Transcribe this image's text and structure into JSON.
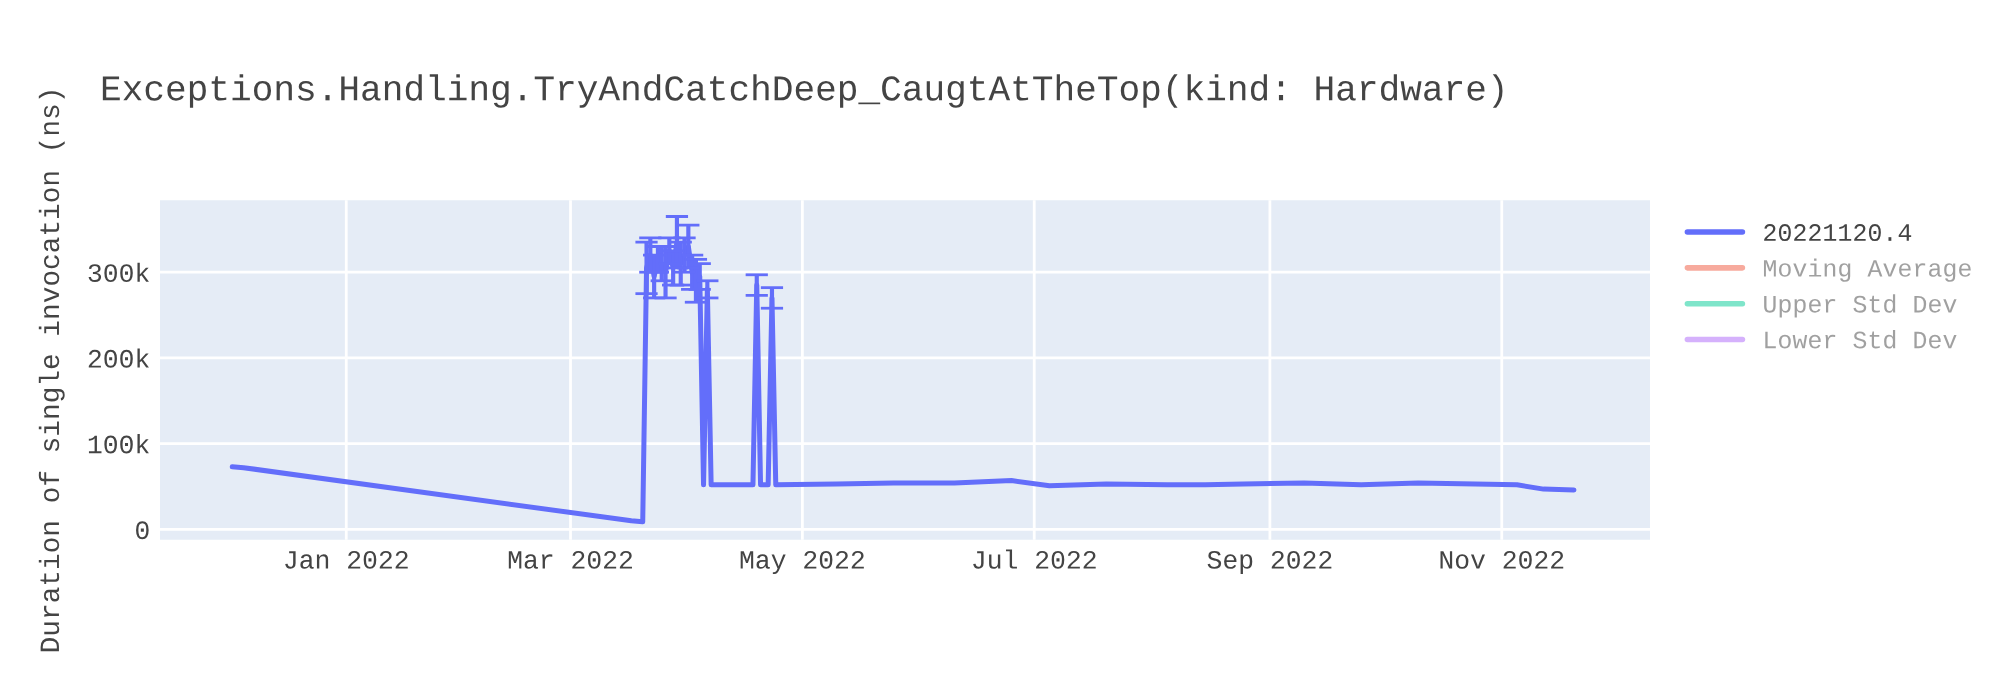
{
  "chart_data": {
    "type": "line",
    "title": "Exceptions.Handling.TryAndCatchDeep_CaugtAtTheTop(kind: Hardware)",
    "ylabel": "Duration of single invocation (ns)",
    "xlim": [
      "2021-11-13",
      "2022-12-10"
    ],
    "xticks": [
      {
        "value": "2022-01-01",
        "label": "Jan 2022"
      },
      {
        "value": "2022-03-01",
        "label": "Mar 2022"
      },
      {
        "value": "2022-05-01",
        "label": "May 2022"
      },
      {
        "value": "2022-07-01",
        "label": "Jul 2022"
      },
      {
        "value": "2022-09-01",
        "label": "Sep 2022"
      },
      {
        "value": "2022-11-01",
        "label": "Nov 2022"
      }
    ],
    "ylim": [
      -12000,
      384000
    ],
    "yticks": [
      0,
      {
        "value": 100000,
        "label": "100k"
      },
      {
        "value": 200000,
        "label": "200k"
      },
      {
        "value": 300000,
        "label": "300k"
      }
    ],
    "grid": true,
    "legend": "right",
    "marker": "none",
    "line_style": "solid",
    "series": [
      {
        "name": "20221120.4",
        "color": "#636efa",
        "x": [
          "2021-12-02",
          "2021-12-05",
          "2022-03-17",
          "2022-03-20",
          "2022-03-21",
          "2022-03-22",
          "2022-03-23",
          "2022-03-24",
          "2022-03-25",
          "2022-03-26",
          "2022-03-27",
          "2022-03-28",
          "2022-03-29",
          "2022-03-30",
          "2022-03-31",
          "2022-04-01",
          "2022-04-02",
          "2022-04-03",
          "2022-04-04",
          "2022-04-05",
          "2022-04-06",
          "2022-04-07",
          "2022-04-12",
          "2022-04-18",
          "2022-04-19",
          "2022-04-20",
          "2022-04-22",
          "2022-04-23",
          "2022-04-24",
          "2022-05-10",
          "2022-05-25",
          "2022-06-10",
          "2022-06-25",
          "2022-07-05",
          "2022-07-20",
          "2022-08-05",
          "2022-08-15",
          "2022-08-25",
          "2022-09-10",
          "2022-09-25",
          "2022-10-10",
          "2022-10-25",
          "2022-11-05",
          "2022-11-12",
          "2022-11-20"
        ],
        "values": [
          73000,
          72000,
          10000,
          9000,
          305000,
          320000,
          295000,
          315000,
          310000,
          300000,
          325000,
          305000,
          335000,
          310000,
          320000,
          330000,
          300000,
          290000,
          295000,
          52000,
          280000,
          52000,
          52000,
          52000,
          285000,
          52000,
          52000,
          270000,
          52000,
          53000,
          54000,
          54000,
          57000,
          51000,
          53000,
          52000,
          52000,
          53000,
          54000,
          52000,
          54000,
          53000,
          52000,
          47000,
          46000
        ],
        "errors": [
          null,
          null,
          null,
          null,
          30000,
          20000,
          25000,
          15000,
          20000,
          30000,
          15000,
          20000,
          30000,
          25000,
          20000,
          25000,
          20000,
          25000,
          15000,
          null,
          10000,
          null,
          null,
          null,
          12000,
          null,
          null,
          12000,
          null,
          null,
          null,
          null,
          null,
          null,
          null,
          null,
          null,
          null,
          null,
          null,
          null,
          null,
          null,
          null,
          null
        ]
      },
      {
        "name": "Moving Average",
        "color": "#ef553b"
      },
      {
        "name": "Upper Std Dev",
        "color": "#00cc96"
      },
      {
        "name": "Lower Std Dev",
        "color": "#ab63fa"
      }
    ]
  }
}
